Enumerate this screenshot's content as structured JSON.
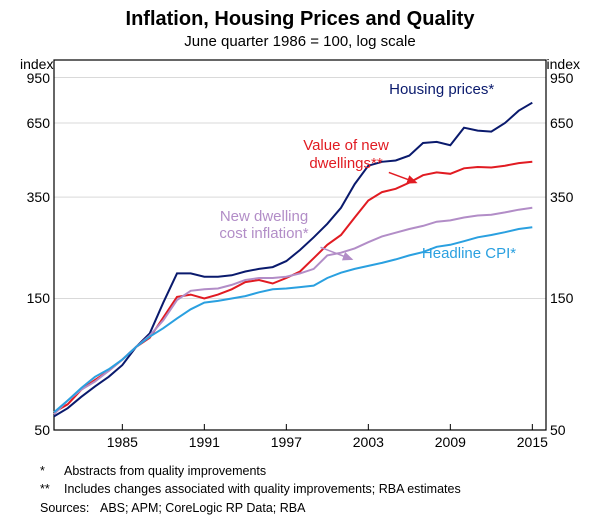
{
  "title": "Inflation, Housing Prices and Quality",
  "subtitle": "June quarter 1986 = 100, log scale",
  "chart": {
    "type": "line",
    "background_color": "#ffffff",
    "plot_border_color": "#000000",
    "plot_border_width": 1.2,
    "grid_color": "#d9d9d9",
    "grid_width": 1,
    "x": {
      "min": 1980,
      "max": 2016,
      "ticks": [
        1985,
        1991,
        1997,
        2003,
        2009,
        2015
      ],
      "tick_fontsize": 14
    },
    "y": {
      "scale": "log",
      "min": 50,
      "max": 1100,
      "ticks": [
        50,
        150,
        350,
        650,
        950
      ],
      "label_left": "index",
      "label_right": "index",
      "tick_fontsize": 14
    },
    "series": [
      {
        "id": "housing_prices",
        "label": "Housing prices*",
        "color": "#0a1a6d",
        "width": 2,
        "label_pos": {
          "x": 2008,
          "y": 850
        },
        "data": [
          [
            1980,
            56
          ],
          [
            1981,
            60
          ],
          [
            1982,
            66
          ],
          [
            1983,
            72
          ],
          [
            1984,
            78
          ],
          [
            1985,
            86
          ],
          [
            1986,
            100
          ],
          [
            1987,
            112
          ],
          [
            1988,
            145
          ],
          [
            1989,
            185
          ],
          [
            1990,
            185
          ],
          [
            1991,
            180
          ],
          [
            1992,
            180
          ],
          [
            1993,
            182
          ],
          [
            1994,
            188
          ],
          [
            1995,
            192
          ],
          [
            1996,
            195
          ],
          [
            1997,
            205
          ],
          [
            1998,
            225
          ],
          [
            1999,
            250
          ],
          [
            2000,
            280
          ],
          [
            2001,
            320
          ],
          [
            2002,
            390
          ],
          [
            2003,
            455
          ],
          [
            2004,
            470
          ],
          [
            2005,
            475
          ],
          [
            2006,
            495
          ],
          [
            2007,
            550
          ],
          [
            2008,
            555
          ],
          [
            2009,
            540
          ],
          [
            2010,
            625
          ],
          [
            2011,
            610
          ],
          [
            2012,
            605
          ],
          [
            2013,
            650
          ],
          [
            2014,
            720
          ],
          [
            2015,
            770
          ]
        ]
      },
      {
        "id": "value_new_dwellings",
        "label": "Value of new\ndwellings**",
        "color": "#e11b22",
        "width": 2,
        "label_pos": {
          "x": 2001,
          "y": 530
        },
        "arrow": {
          "from": [
            2004.5,
            430
          ],
          "to": [
            2006.5,
            395
          ]
        },
        "data": [
          [
            1980,
            58
          ],
          [
            1981,
            62
          ],
          [
            1982,
            70
          ],
          [
            1983,
            76
          ],
          [
            1984,
            82
          ],
          [
            1985,
            90
          ],
          [
            1986,
            100
          ],
          [
            1987,
            108
          ],
          [
            1988,
            128
          ],
          [
            1989,
            152
          ],
          [
            1990,
            155
          ],
          [
            1991,
            150
          ],
          [
            1992,
            155
          ],
          [
            1993,
            162
          ],
          [
            1994,
            172
          ],
          [
            1995,
            175
          ],
          [
            1996,
            170
          ],
          [
            1997,
            178
          ],
          [
            1998,
            188
          ],
          [
            1999,
            210
          ],
          [
            2000,
            235
          ],
          [
            2001,
            255
          ],
          [
            2002,
            295
          ],
          [
            2003,
            340
          ],
          [
            2004,
            365
          ],
          [
            2005,
            375
          ],
          [
            2006,
            395
          ],
          [
            2007,
            420
          ],
          [
            2008,
            430
          ],
          [
            2009,
            425
          ],
          [
            2010,
            445
          ],
          [
            2011,
            450
          ],
          [
            2012,
            448
          ],
          [
            2013,
            455
          ],
          [
            2014,
            465
          ],
          [
            2015,
            470
          ]
        ]
      },
      {
        "id": "new_dwelling_cost",
        "label": "New dwelling\ncost inflation*",
        "color": "#b28dc7",
        "width": 2,
        "label_pos": {
          "x": 1995,
          "y": 295
        },
        "arrow": {
          "from": [
            1999.5,
            230
          ],
          "to": [
            2001.8,
            208
          ]
        },
        "data": [
          [
            1980,
            57
          ],
          [
            1981,
            64
          ],
          [
            1982,
            70
          ],
          [
            1983,
            75
          ],
          [
            1984,
            82
          ],
          [
            1985,
            90
          ],
          [
            1986,
            100
          ],
          [
            1987,
            110
          ],
          [
            1988,
            125
          ],
          [
            1989,
            148
          ],
          [
            1990,
            160
          ],
          [
            1991,
            162
          ],
          [
            1992,
            163
          ],
          [
            1993,
            168
          ],
          [
            1994,
            175
          ],
          [
            1995,
            178
          ],
          [
            1996,
            178
          ],
          [
            1997,
            180
          ],
          [
            1998,
            185
          ],
          [
            1999,
            192
          ],
          [
            2000,
            215
          ],
          [
            2001,
            220
          ],
          [
            2002,
            228
          ],
          [
            2003,
            240
          ],
          [
            2004,
            252
          ],
          [
            2005,
            260
          ],
          [
            2006,
            268
          ],
          [
            2007,
            275
          ],
          [
            2008,
            285
          ],
          [
            2009,
            288
          ],
          [
            2010,
            295
          ],
          [
            2011,
            300
          ],
          [
            2012,
            302
          ],
          [
            2013,
            308
          ],
          [
            2014,
            315
          ],
          [
            2015,
            320
          ]
        ]
      },
      {
        "id": "headline_cpi",
        "label": "Headline CPI*",
        "color": "#2aa0e0",
        "width": 2,
        "label_pos": {
          "x": 2010,
          "y": 215
        },
        "data": [
          [
            1980,
            58
          ],
          [
            1981,
            64
          ],
          [
            1982,
            71
          ],
          [
            1983,
            78
          ],
          [
            1984,
            83
          ],
          [
            1985,
            90
          ],
          [
            1986,
            100
          ],
          [
            1987,
            109
          ],
          [
            1988,
            117
          ],
          [
            1989,
            127
          ],
          [
            1990,
            137
          ],
          [
            1991,
            145
          ],
          [
            1992,
            147
          ],
          [
            1993,
            150
          ],
          [
            1994,
            153
          ],
          [
            1995,
            158
          ],
          [
            1996,
            162
          ],
          [
            1997,
            163
          ],
          [
            1998,
            165
          ],
          [
            1999,
            167
          ],
          [
            2000,
            178
          ],
          [
            2001,
            186
          ],
          [
            2002,
            192
          ],
          [
            2003,
            197
          ],
          [
            2004,
            202
          ],
          [
            2005,
            208
          ],
          [
            2006,
            215
          ],
          [
            2007,
            221
          ],
          [
            2008,
            231
          ],
          [
            2009,
            235
          ],
          [
            2010,
            242
          ],
          [
            2011,
            250
          ],
          [
            2012,
            255
          ],
          [
            2013,
            261
          ],
          [
            2014,
            268
          ],
          [
            2015,
            272
          ]
        ]
      }
    ]
  },
  "footnotes": {
    "note1_mark": "*",
    "note1_text": "Abstracts from quality improvements",
    "note2_mark": "**",
    "note2_text": "Includes changes associated with quality improvements; RBA estimates",
    "sources_label": "Sources:",
    "sources_text": "ABS; APM; CoreLogic RP Data; RBA"
  }
}
